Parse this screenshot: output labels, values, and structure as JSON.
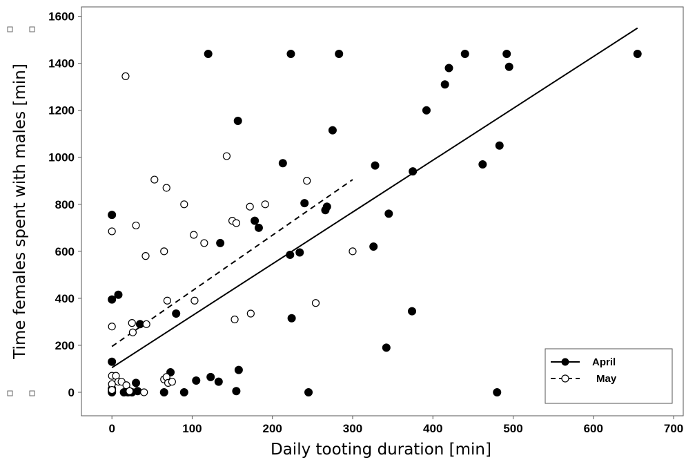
{
  "chart_data": {
    "type": "scatter",
    "xlabel": "Daily tooting duration [min]",
    "ylabel": "Time females spent with males [min]",
    "xlim": [
      -38,
      712
    ],
    "ylim": [
      -100,
      1640
    ],
    "x_ticks": [
      0,
      100,
      200,
      300,
      400,
      500,
      600,
      700
    ],
    "y_ticks": [
      0,
      200,
      400,
      600,
      800,
      1000,
      1200,
      1400,
      1600
    ],
    "legend": {
      "position": "bottom-right"
    },
    "series": [
      {
        "name": "April",
        "marker": "filled-circle",
        "color": "#000000",
        "points": [
          [
            0,
            755
          ],
          [
            0,
            395
          ],
          [
            0,
            130
          ],
          [
            0,
            15
          ],
          [
            0,
            5
          ],
          [
            0,
            0
          ],
          [
            8,
            415
          ],
          [
            15,
            0
          ],
          [
            20,
            0
          ],
          [
            25,
            0
          ],
          [
            30,
            40
          ],
          [
            32,
            5
          ],
          [
            35,
            290
          ],
          [
            65,
            0
          ],
          [
            73,
            85
          ],
          [
            80,
            335
          ],
          [
            90,
            0
          ],
          [
            105,
            50
          ],
          [
            120,
            1440
          ],
          [
            123,
            65
          ],
          [
            133,
            45
          ],
          [
            135,
            635
          ],
          [
            155,
            5
          ],
          [
            157,
            1155
          ],
          [
            158,
            95
          ],
          [
            178,
            730
          ],
          [
            183,
            700
          ],
          [
            213,
            975
          ],
          [
            222,
            585
          ],
          [
            223,
            1440
          ],
          [
            224,
            315
          ],
          [
            234,
            595
          ],
          [
            240,
            805
          ],
          [
            245,
            0
          ],
          [
            266,
            775
          ],
          [
            268,
            790
          ],
          [
            275,
            1115
          ],
          [
            283,
            1440
          ],
          [
            326,
            620
          ],
          [
            328,
            965
          ],
          [
            342,
            190
          ],
          [
            345,
            760
          ],
          [
            374,
            345
          ],
          [
            375,
            940
          ],
          [
            392,
            1200
          ],
          [
            415,
            1310
          ],
          [
            420,
            1380
          ],
          [
            440,
            1440
          ],
          [
            462,
            970
          ],
          [
            480,
            0
          ],
          [
            483,
            1050
          ],
          [
            492,
            1440
          ],
          [
            495,
            1385
          ],
          [
            655,
            1440
          ]
        ],
        "fit": {
          "x": [
            0,
            655
          ],
          "y": [
            105,
            1550
          ],
          "style": "solid"
        }
      },
      {
        "name": "May",
        "marker": "open-circle",
        "color": "#000000",
        "points": [
          [
            0,
            685
          ],
          [
            0,
            280
          ],
          [
            0,
            70
          ],
          [
            0,
            35
          ],
          [
            0,
            10
          ],
          [
            5,
            70
          ],
          [
            8,
            45
          ],
          [
            12,
            45
          ],
          [
            17,
            1345
          ],
          [
            18,
            30
          ],
          [
            22,
            5
          ],
          [
            25,
            295
          ],
          [
            26,
            255
          ],
          [
            30,
            710
          ],
          [
            40,
            0
          ],
          [
            42,
            580
          ],
          [
            43,
            290
          ],
          [
            53,
            905
          ],
          [
            65,
            600
          ],
          [
            65,
            55
          ],
          [
            68,
            870
          ],
          [
            68,
            65
          ],
          [
            69,
            390
          ],
          [
            70,
            40
          ],
          [
            75,
            45
          ],
          [
            90,
            800
          ],
          [
            102,
            670
          ],
          [
            103,
            390
          ],
          [
            115,
            635
          ],
          [
            143,
            1005
          ],
          [
            150,
            730
          ],
          [
            153,
            310
          ],
          [
            155,
            720
          ],
          [
            172,
            790
          ],
          [
            173,
            335
          ],
          [
            191,
            800
          ],
          [
            243,
            900
          ],
          [
            254,
            380
          ],
          [
            300,
            600
          ]
        ],
        "fit": {
          "x": [
            0,
            300
          ],
          "y": [
            195,
            905
          ],
          "style": "dashed"
        }
      }
    ]
  }
}
